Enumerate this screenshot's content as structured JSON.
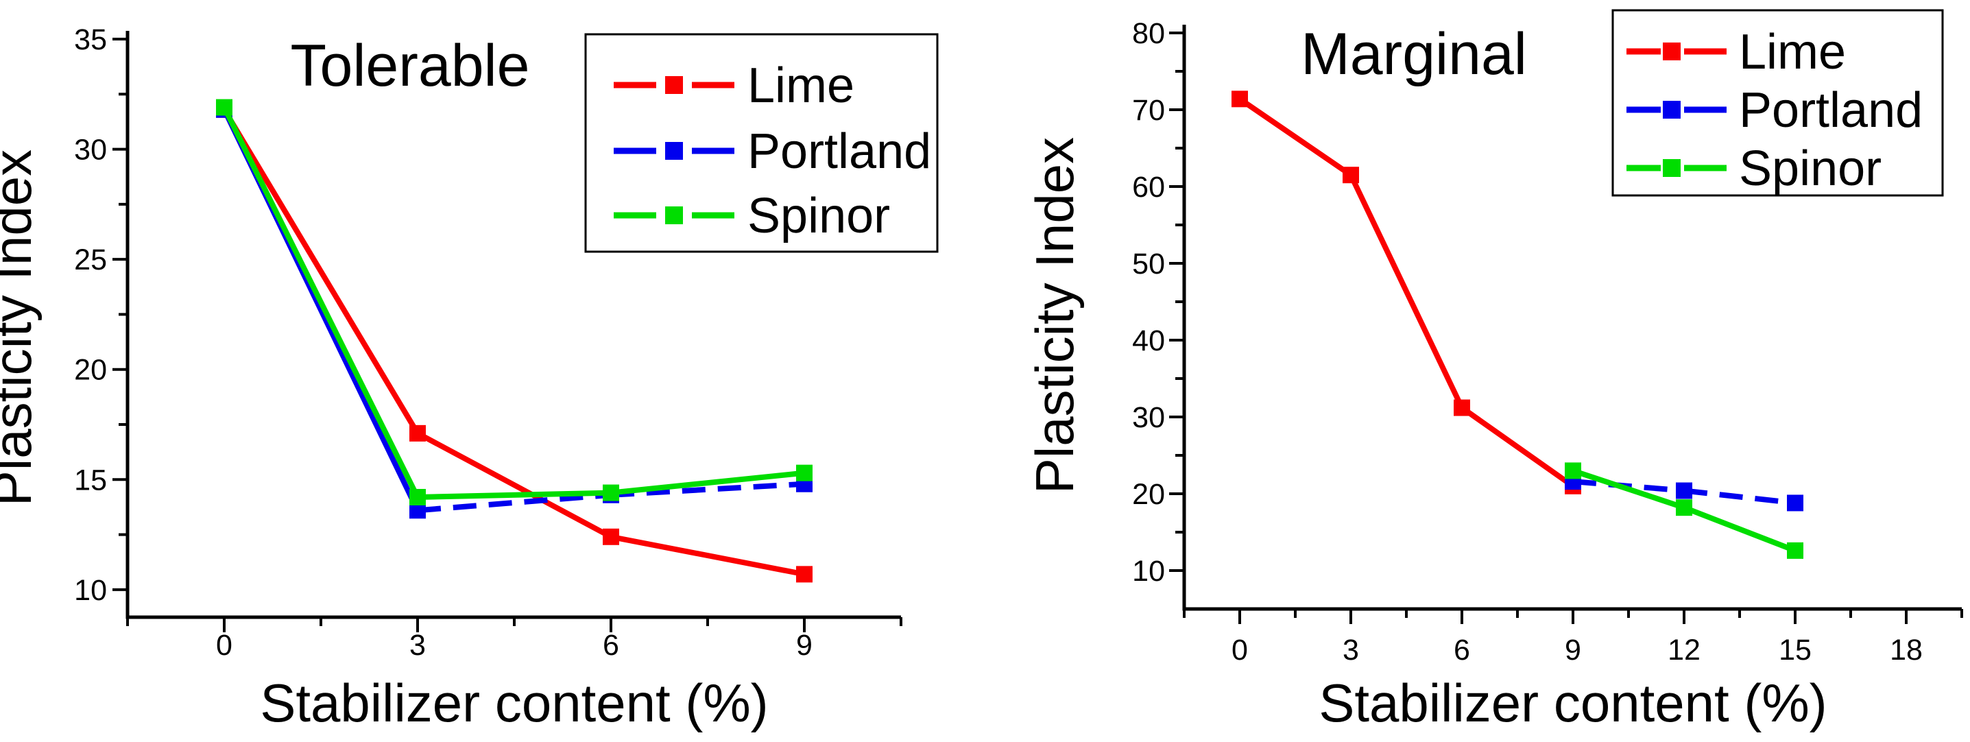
{
  "page": {
    "background": "#ffffff"
  },
  "colors": {
    "lime": "#fa0000",
    "portland": "#0000ee",
    "spinor": "#00dd00",
    "axis": "#000000"
  },
  "chart_data": [
    {
      "id": "tolerable",
      "type": "line",
      "title": "Tolerable",
      "xlabel": "Stabilizer content (%)",
      "ylabel": "Plasticity Index",
      "xlim": [
        -1.5,
        10.5
      ],
      "ylim": [
        8.75,
        35
      ],
      "x_major_ticks": [
        0,
        3,
        6,
        9
      ],
      "x_minor_ticks": [
        -1.5,
        1.5,
        4.5,
        7.5,
        10.5
      ],
      "y_major_ticks": [
        10,
        15,
        20,
        25,
        30,
        35
      ],
      "y_minor_ticks": [
        12.5,
        17.5,
        22.5,
        27.5,
        32.5
      ],
      "grid": false,
      "legend_position": "top-right",
      "legend_entries": [
        "Lime",
        "Portland",
        "Spinor"
      ],
      "series": [
        {
          "name": "Lime",
          "color_key": "lime",
          "marker": "square",
          "line_style": "solid",
          "dash_from_index": -1,
          "x": [
            0,
            3,
            6,
            9
          ],
          "y": [
            31.8,
            17.1,
            12.4,
            10.7
          ]
        },
        {
          "name": "Portland",
          "color_key": "portland",
          "marker": "square",
          "line_style": "dashed",
          "dash_from_index": 1,
          "x": [
            0,
            3,
            6,
            9
          ],
          "y": [
            31.8,
            13.6,
            14.3,
            14.8
          ]
        },
        {
          "name": "Spinor",
          "color_key": "spinor",
          "marker": "square",
          "line_style": "solid",
          "dash_from_index": -1,
          "x": [
            0,
            3,
            6,
            9
          ],
          "y": [
            31.9,
            14.2,
            14.4,
            15.3
          ]
        }
      ]
    },
    {
      "id": "marginal",
      "type": "line",
      "title": "Marginal",
      "xlabel": "Stabilizer content (%)",
      "ylabel": "Plasticity Index",
      "xlim": [
        -1.5,
        19.5
      ],
      "ylim": [
        5,
        80
      ],
      "x_major_ticks": [
        0,
        3,
        6,
        9,
        12,
        15,
        18
      ],
      "x_minor_ticks": [
        -1.5,
        1.5,
        4.5,
        7.5,
        10.5,
        13.5,
        16.5,
        19.5
      ],
      "y_major_ticks": [
        10,
        20,
        30,
        40,
        50,
        60,
        70,
        80
      ],
      "y_minor_ticks": [
        15,
        25,
        35,
        45,
        55,
        65,
        75
      ],
      "grid": false,
      "legend_position": "top-right",
      "legend_entries": [
        "Lime",
        "Portland",
        "Spinor"
      ],
      "series": [
        {
          "name": "Lime",
          "color_key": "lime",
          "marker": "square",
          "line_style": "solid",
          "dash_from_index": -1,
          "x": [
            0,
            3,
            6,
            9
          ],
          "y": [
            71.4,
            61.5,
            31.2,
            21.0
          ]
        },
        {
          "name": "Portland",
          "color_key": "portland",
          "marker": "square",
          "line_style": "dashed",
          "dash_from_index": 0,
          "x": [
            9,
            12,
            15
          ],
          "y": [
            21.6,
            20.4,
            18.8
          ]
        },
        {
          "name": "Spinor",
          "color_key": "spinor",
          "marker": "square",
          "line_style": "solid",
          "dash_from_index": -1,
          "x": [
            9,
            12,
            15
          ],
          "y": [
            23.0,
            18.2,
            12.6
          ]
        }
      ]
    }
  ]
}
